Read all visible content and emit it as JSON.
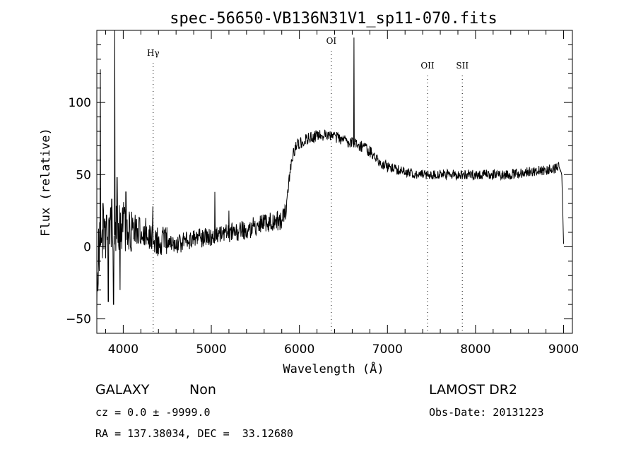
{
  "chart_data": {
    "type": "line",
    "title": "spec-56650-VB136N31V1_sp11-070.fits",
    "xlabel": "Wavelength (Å)",
    "ylabel": "Flux (relative)",
    "xlim": [
      3700,
      9100
    ],
    "ylim": [
      -60,
      150
    ],
    "x_ticks": [
      4000,
      5000,
      6000,
      7000,
      8000,
      9000
    ],
    "y_ticks": [
      -50,
      0,
      50,
      100
    ],
    "grid": false,
    "line_color": "#000000",
    "emission_lines": [
      {
        "label": "Hγ",
        "x": 4340
      },
      {
        "label": "OI",
        "x": 6363
      },
      {
        "label": "OII",
        "x": 7455
      },
      {
        "label": "SII",
        "x": 7850
      }
    ],
    "continuum_anchors": [
      [
        3700,
        -40
      ],
      [
        3720,
        -5
      ],
      [
        3740,
        5
      ],
      [
        3800,
        8
      ],
      [
        3900,
        10
      ],
      [
        4000,
        15
      ],
      [
        4200,
        12
      ],
      [
        4400,
        4
      ],
      [
        4600,
        2
      ],
      [
        4800,
        5
      ],
      [
        5000,
        7
      ],
      [
        5200,
        10
      ],
      [
        5400,
        12
      ],
      [
        5600,
        16
      ],
      [
        5800,
        18
      ],
      [
        5850,
        24
      ],
      [
        5880,
        45
      ],
      [
        5920,
        62
      ],
      [
        5960,
        70
      ],
      [
        6000,
        72
      ],
      [
        6100,
        75
      ],
      [
        6200,
        77
      ],
      [
        6300,
        77
      ],
      [
        6400,
        76
      ],
      [
        6500,
        74
      ],
      [
        6600,
        72
      ],
      [
        6700,
        70
      ],
      [
        6800,
        66
      ],
      [
        6900,
        60
      ],
      [
        7000,
        55
      ],
      [
        7200,
        52
      ],
      [
        7400,
        50
      ],
      [
        7600,
        50
      ],
      [
        7800,
        50
      ],
      [
        8000,
        50
      ],
      [
        8200,
        50
      ],
      [
        8400,
        50
      ],
      [
        8600,
        52
      ],
      [
        8800,
        53
      ],
      [
        8950,
        55
      ],
      [
        8980,
        50
      ],
      [
        9000,
        2
      ]
    ],
    "spikes": [
      [
        3740,
        123
      ],
      [
        3770,
        30
      ],
      [
        3810,
        22
      ],
      [
        3830,
        -38
      ],
      [
        3870,
        33
      ],
      [
        3890,
        -40
      ],
      [
        3905,
        150
      ],
      [
        3930,
        48
      ],
      [
        3965,
        -30
      ],
      [
        4030,
        38
      ],
      [
        4335,
        28
      ],
      [
        5040,
        38
      ],
      [
        5200,
        25
      ],
      [
        6620,
        145
      ]
    ]
  },
  "info": {
    "object_class": "GALAXY",
    "subclass": "Non",
    "survey": "LAMOST DR2",
    "cz_line": "cz = 0.0 ± -9999.0",
    "obs_date_line": "Obs-Date: 20131223",
    "coords_line": "RA = 137.38034, DEC =  33.12680"
  }
}
